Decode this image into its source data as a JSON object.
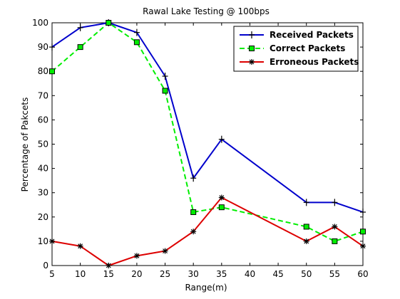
{
  "chart_data": {
    "type": "line",
    "title": "Rawal Lake Testing @ 100bps",
    "xlabel": "Range(m)",
    "ylabel": "Percentage of Pakcets",
    "xlim": [
      5,
      60
    ],
    "ylim": [
      0,
      100
    ],
    "xticks": [
      5,
      10,
      15,
      20,
      25,
      30,
      35,
      40,
      45,
      50,
      55,
      60
    ],
    "yticks": [
      0,
      10,
      20,
      30,
      40,
      50,
      60,
      70,
      80,
      90,
      100
    ],
    "grid": false,
    "legend_position": "top-right",
    "x": [
      5,
      10,
      15,
      20,
      25,
      30,
      35,
      50,
      55,
      60
    ],
    "series": [
      {
        "name": "Received Packets",
        "values": [
          90,
          98,
          100,
          96,
          78,
          36,
          52,
          26,
          26,
          22
        ],
        "color": "#0000cc",
        "line_style": "solid",
        "marker": "plus"
      },
      {
        "name": "Correct Packets",
        "values": [
          80,
          90,
          100,
          92,
          72,
          22,
          24,
          16,
          10,
          14
        ],
        "color": "#00ee00",
        "line_style": "dashed",
        "marker": "square"
      },
      {
        "name": "Erroneous Packets",
        "values": [
          10,
          8,
          0,
          4,
          6,
          14,
          28,
          10,
          16,
          8
        ],
        "color": "#dd0000",
        "line_style": "solid",
        "marker": "asterisk"
      }
    ]
  }
}
